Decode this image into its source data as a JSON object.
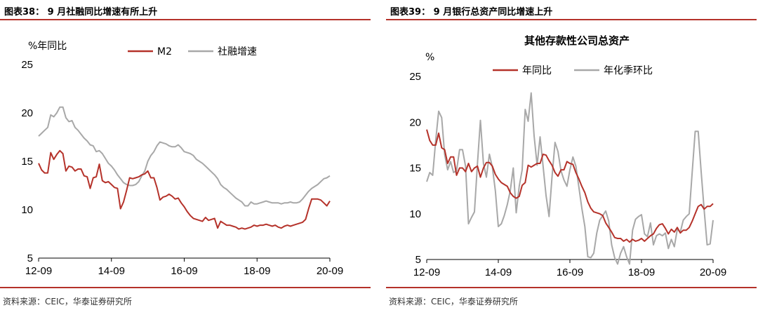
{
  "panels": {
    "left": {
      "title": "图表38： 9 月社融同比增速有所上升",
      "source": "资料来源：CEIC，华泰证券研究所"
    },
    "right": {
      "title": "图表39： 9 月银行总资产同比增速上升",
      "source": "资料来源：CEIC，华泰证券研究所"
    }
  },
  "colors": {
    "primary": "#b5322a",
    "secondary": "#a8a8a8",
    "rule": "#b5322a"
  },
  "chart_data": [
    {
      "type": "line",
      "title": "",
      "ylabel": "%年同比",
      "xlabel": "",
      "ylim": [
        5,
        25
      ],
      "yticks": [
        5,
        10,
        15,
        20,
        25
      ],
      "xlim": [
        0,
        96
      ],
      "xticks": [
        {
          "pos": 0,
          "label": "12-09"
        },
        {
          "pos": 24,
          "label": "14-09"
        },
        {
          "pos": 48,
          "label": "16-09"
        },
        {
          "pos": 72,
          "label": "18-09"
        },
        {
          "pos": 96,
          "label": "20-09"
        }
      ],
      "legend_position": "top-center",
      "series": [
        {
          "name": "M2",
          "color": "#b5322a",
          "values": [
            14.8,
            14.1,
            13.8,
            13.8,
            15.9,
            15.2,
            15.7,
            16.1,
            15.8,
            14.0,
            14.5,
            14.4,
            14.0,
            14.2,
            14.2,
            13.5,
            13.4,
            12.2,
            13.3,
            13.4,
            14.7,
            13.0,
            12.8,
            12.9,
            12.6,
            12.3,
            12.2,
            10.1,
            10.8,
            12.0,
            13.3,
            13.2,
            13.3,
            13.4,
            13.6,
            13.7,
            14.0,
            13.3,
            13.3,
            12.3,
            11.0,
            11.3,
            11.4,
            11.6,
            11.4,
            11.1,
            11.2,
            10.7,
            10.3,
            9.8,
            9.4,
            9.1,
            9.0,
            8.9,
            8.8,
            9.2,
            8.9,
            9.0,
            9.1,
            8.1,
            8.8,
            8.6,
            8.4,
            8.4,
            8.3,
            8.2,
            8.0,
            8.1,
            8.0,
            8.1,
            8.2,
            8.4,
            8.3,
            8.4,
            8.4,
            8.5,
            8.4,
            8.3,
            8.4,
            8.2,
            8.1,
            8.3,
            8.4,
            8.3,
            8.4,
            8.5,
            8.6,
            8.7,
            9.0,
            10.1,
            11.1,
            11.1,
            11.1,
            11.0,
            10.7,
            10.4,
            10.9
          ]
        },
        {
          "name": "社融增速",
          "color": "#a8a8a8",
          "values": [
            17.6,
            17.9,
            18.2,
            18.5,
            19.8,
            19.6,
            20.0,
            20.6,
            20.6,
            19.5,
            19.1,
            19.2,
            18.5,
            18.2,
            17.8,
            17.4,
            17.1,
            16.7,
            16.6,
            16.0,
            16.1,
            15.8,
            15.3,
            14.8,
            14.5,
            14.1,
            13.6,
            13.2,
            12.8,
            12.6,
            12.5,
            12.5,
            12.6,
            12.9,
            13.5,
            14.0,
            15.0,
            15.6,
            16.0,
            16.6,
            17.0,
            16.9,
            16.8,
            16.6,
            16.5,
            16.5,
            16.7,
            16.4,
            16.0,
            15.9,
            15.8,
            15.6,
            15.2,
            15.0,
            14.8,
            14.5,
            14.2,
            13.9,
            13.6,
            13.2,
            12.6,
            12.3,
            12.1,
            11.8,
            11.5,
            11.2,
            11.0,
            10.8,
            10.4,
            10.4,
            10.8,
            10.6,
            10.6,
            10.7,
            10.8,
            10.9,
            10.8,
            10.7,
            10.7,
            10.7,
            10.6,
            10.7,
            10.7,
            10.8,
            10.7,
            10.7,
            10.8,
            11.1,
            11.5,
            11.9,
            12.2,
            12.4,
            12.6,
            12.9,
            13.2,
            13.3,
            13.5
          ]
        }
      ]
    },
    {
      "type": "line",
      "title": "其他存款性公司总资产",
      "ylabel": "%",
      "xlabel": "",
      "ylim": [
        5,
        25
      ],
      "yticks": [
        5,
        10,
        15,
        20,
        25
      ],
      "xlim": [
        0,
        96
      ],
      "xticks": [
        {
          "pos": 0,
          "label": "12-09"
        },
        {
          "pos": 24,
          "label": "14-09"
        },
        {
          "pos": 48,
          "label": "16-09"
        },
        {
          "pos": 72,
          "label": "18-09"
        },
        {
          "pos": 96,
          "label": "20-09"
        }
      ],
      "legend_position": "top-center",
      "series": [
        {
          "name": "年同比",
          "color": "#b5322a",
          "values": [
            19.2,
            18.0,
            17.5,
            17.5,
            18.8,
            17.2,
            17.0,
            15.5,
            16.2,
            16.2,
            14.2,
            15.0,
            15.0,
            14.6,
            15.5,
            14.6,
            15.0,
            15.2,
            14.0,
            15.0,
            15.6,
            15.6,
            15.2,
            14.3,
            13.8,
            13.4,
            13.2,
            13.0,
            12.3,
            11.9,
            11.7,
            11.9,
            13.1,
            13.4,
            15.3,
            15.1,
            15.3,
            15.5,
            15.5,
            16.5,
            16.4,
            15.8,
            15.3,
            14.5,
            14.1,
            14.8,
            14.8,
            15.7,
            15.5,
            15.4,
            14.5,
            13.8,
            13.0,
            12.3,
            11.3,
            10.6,
            10.2,
            10.1,
            10.0,
            9.8,
            9.0,
            8.5,
            8.0,
            7.4,
            7.3,
            7.3,
            7.0,
            7.2,
            6.9,
            7.2,
            7.0,
            7.1,
            7.3,
            7.0,
            7.3,
            7.6,
            7.8,
            8.4,
            8.8,
            8.9,
            8.4,
            7.8,
            8.3,
            8.0,
            8.5,
            7.9,
            8.2,
            8.2,
            8.5,
            9.2,
            10.0,
            10.8,
            11.0,
            10.5,
            10.8,
            10.8,
            11.1
          ]
        },
        {
          "name": "年化季环比",
          "color": "#a8a8a8",
          "values": [
            13.5,
            14.5,
            14.2,
            18.0,
            21.2,
            20.5,
            16.5,
            14.8,
            15.7,
            14.5,
            14.7,
            17.0,
            17.0,
            15.2,
            8.9,
            9.6,
            10.2,
            15.5,
            20.2,
            15.5,
            14.0,
            16.5,
            15.1,
            12.5,
            8.6,
            8.9,
            9.8,
            11.0,
            12.5,
            15.0,
            10.1,
            13.0,
            14.8,
            21.4,
            20.1,
            23.2,
            18.5,
            15.3,
            18.4,
            15.2,
            12.0,
            9.7,
            14.0,
            17.8,
            16.8,
            14.7,
            13.7,
            13.0,
            14.8,
            16.2,
            15.2,
            12.9,
            10.6,
            8.6,
            5.3,
            5.2,
            5.7,
            7.9,
            9.3,
            9.8,
            10.3,
            9.2,
            6.6,
            5.2,
            4.5,
            5.7,
            6.4,
            5.3,
            4.5,
            8.2,
            9.4,
            9.7,
            9.9,
            7.8,
            7.5,
            9.0,
            6.6,
            7.6,
            7.8,
            7.6,
            7.9,
            6.2,
            7.2,
            6.4,
            8.3,
            8.0,
            9.3,
            9.7,
            10.0,
            14.6,
            19.0,
            19.0,
            14.6,
            10.4,
            6.6,
            6.7,
            9.3
          ]
        }
      ]
    }
  ]
}
